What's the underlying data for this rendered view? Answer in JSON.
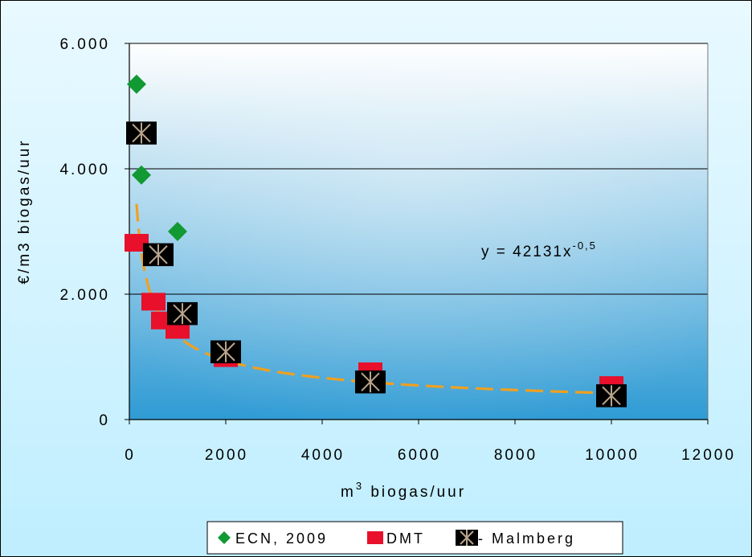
{
  "chart_data": {
    "type": "scatter",
    "xlabel": {
      "base": "m",
      "sup": "3",
      "rest": " biogas/uur"
    },
    "ylabel": "€/m3 biogas/uur",
    "xlim": [
      0,
      12000
    ],
    "ylim": [
      0,
      6000
    ],
    "xticks": [
      0,
      2000,
      4000,
      6000,
      8000,
      10000,
      12000
    ],
    "xtick_labels": [
      "0",
      "2000",
      "4000",
      "6000",
      "8000",
      "10000",
      "12000"
    ],
    "yticks": [
      0,
      2000,
      4000,
      6000
    ],
    "ytick_labels": [
      "0",
      "2.000",
      "4.000",
      "6.000"
    ],
    "grid": "horizontal",
    "legend_position": "bottom",
    "series": [
      {
        "name": "ECN, 2009",
        "marker": "diamond",
        "color": "#119933",
        "points": [
          [
            150,
            5350
          ],
          [
            250,
            3900
          ],
          [
            1000,
            3000
          ]
        ]
      },
      {
        "name": "DMT",
        "marker": "square",
        "color": "#e8102a",
        "points": [
          [
            150,
            2820
          ],
          [
            500,
            1880
          ],
          [
            700,
            1580
          ],
          [
            1000,
            1430
          ],
          [
            2000,
            980
          ],
          [
            5000,
            770
          ],
          [
            10000,
            550
          ]
        ]
      },
      {
        "name": "- Malmberg",
        "marker": "star-box",
        "color": "#000000",
        "points": [
          [
            250,
            4570
          ],
          [
            600,
            2630
          ],
          [
            1100,
            1690
          ],
          [
            2000,
            1080
          ],
          [
            5000,
            600
          ],
          [
            10000,
            380
          ]
        ]
      }
    ],
    "trendline": {
      "color": "#f0a020",
      "style": "dashed",
      "coefficient": 42131,
      "exponent": -0.5,
      "x_range": [
        150,
        10000
      ],
      "equation": {
        "prefix": "y = 42131x",
        "sup": "-0,5"
      }
    }
  }
}
